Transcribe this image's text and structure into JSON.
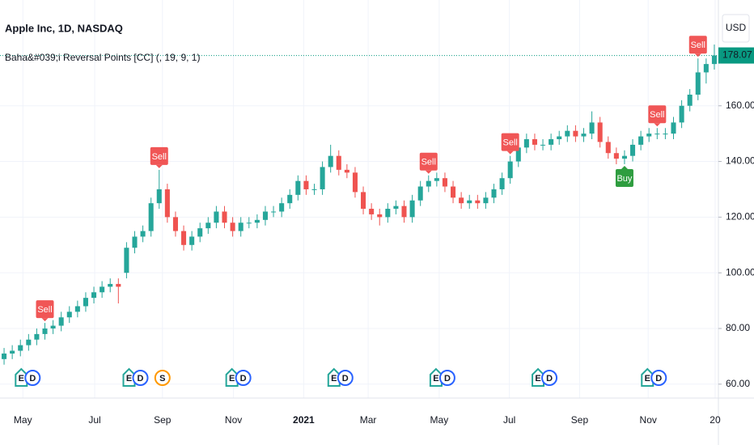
{
  "chart_data": {
    "type": "candlestick",
    "title": "Apple Inc, 1D, NASDAQ",
    "subtitle": "Baha&#039;i Reversal Points [CC] (, 19, 9, 1)",
    "currency": "USD",
    "up_color": "#26a69a",
    "down_color": "#ef5350",
    "grid": true,
    "open": [
      69,
      71,
      72,
      74,
      76,
      78,
      80,
      81,
      84,
      86,
      88,
      91,
      93,
      95,
      96,
      100,
      109,
      113,
      115,
      125,
      130,
      120,
      115,
      110,
      113,
      116,
      118,
      122,
      118,
      115,
      118,
      118,
      119,
      122,
      122,
      125,
      128,
      133,
      130,
      130,
      138,
      142,
      137,
      136,
      129,
      123,
      121,
      120,
      123,
      124,
      120,
      126,
      131,
      133,
      134,
      131,
      127,
      125,
      126,
      125,
      127,
      130,
      134,
      140,
      145,
      148,
      146,
      146,
      148,
      149,
      151,
      149,
      150,
      154,
      147,
      143,
      141,
      142,
      146,
      149,
      150,
      150,
      150,
      154,
      160,
      164,
      172,
      175
    ],
    "high": [
      73,
      74,
      76,
      78,
      80,
      82,
      83,
      86,
      88,
      90,
      93,
      95,
      97,
      98,
      98,
      111,
      115,
      117,
      127,
      137,
      132,
      122,
      117,
      115,
      118,
      120,
      124,
      124,
      120,
      120,
      120,
      121,
      124,
      124,
      127,
      130,
      135,
      135,
      132,
      140,
      146,
      144,
      139,
      138,
      131,
      125,
      123,
      125,
      126,
      126,
      128,
      133,
      135,
      136,
      136,
      133,
      129,
      128,
      128,
      129,
      132,
      136,
      142,
      147,
      150,
      150,
      148,
      150,
      151,
      153,
      153,
      152,
      158,
      156,
      149,
      145,
      144,
      148,
      151,
      152,
      152,
      152,
      156,
      162,
      166,
      177,
      177,
      182
    ],
    "low": [
      67,
      69,
      70,
      72,
      74,
      76,
      78,
      79,
      82,
      84,
      86,
      89,
      91,
      93,
      89,
      98,
      107,
      111,
      113,
      123,
      118,
      113,
      108,
      108,
      111,
      114,
      116,
      116,
      113,
      113,
      116,
      116,
      117,
      120,
      120,
      123,
      126,
      128,
      128,
      128,
      136,
      135,
      134,
      127,
      121,
      119,
      117,
      118,
      121,
      118,
      118,
      124,
      129,
      131,
      129,
      125,
      123,
      123,
      123,
      123,
      125,
      128,
      132,
      138,
      143,
      144,
      144,
      144,
      146,
      147,
      147,
      147,
      148,
      145,
      141,
      139,
      139,
      140,
      144,
      147,
      148,
      148,
      148,
      152,
      158,
      162,
      168,
      173
    ],
    "close": [
      71,
      72,
      74,
      76,
      78,
      80,
      81,
      84,
      86,
      88,
      91,
      93,
      95,
      96,
      95,
      109,
      113,
      115,
      125,
      130,
      120,
      115,
      110,
      113,
      116,
      118,
      122,
      118,
      115,
      118,
      118,
      119,
      122,
      122,
      125,
      128,
      133,
      130,
      130,
      138,
      142,
      137,
      136,
      129,
      123,
      121,
      120,
      123,
      124,
      120,
      126,
      131,
      133,
      134,
      131,
      127,
      125,
      126,
      125,
      127,
      130,
      134,
      140,
      145,
      148,
      146,
      146,
      148,
      149,
      151,
      149,
      150,
      154,
      147,
      143,
      141,
      142,
      146,
      149,
      150,
      150,
      150,
      154,
      160,
      164,
      172,
      175,
      178.07
    ],
    "last_price": 178.07,
    "last_price_color": "#089981",
    "xlim": [
      -0.5,
      87.5
    ],
    "xticks": [
      {
        "value": 2.3,
        "label": "May"
      },
      {
        "value": 11.1,
        "label": "Jul"
      },
      {
        "value": 19.4,
        "label": "Sep"
      },
      {
        "value": 28.1,
        "label": "Nov"
      },
      {
        "value": 36.7,
        "label": "2021"
      },
      {
        "value": 44.6,
        "label": "Mar"
      },
      {
        "value": 53.3,
        "label": "May"
      },
      {
        "value": 61.9,
        "label": "Jul"
      },
      {
        "value": 70.5,
        "label": "Sep"
      },
      {
        "value": 78.9,
        "label": "Nov"
      },
      {
        "value": 87.1,
        "label": "20"
      }
    ],
    "ylim": [
      55,
      198
    ],
    "yticks": [
      {
        "value": 60,
        "label": "60.00"
      },
      {
        "value": 80,
        "label": "80.00"
      },
      {
        "value": 100,
        "label": "100.00"
      },
      {
        "value": 120,
        "label": "120.00"
      },
      {
        "value": 140,
        "label": "140.00"
      },
      {
        "value": 160,
        "label": "160.00"
      }
    ],
    "signals": [
      {
        "label": "Sell",
        "index": 5,
        "color": "#f05656"
      },
      {
        "label": "Sell",
        "index": 19,
        "color": "#f05656"
      },
      {
        "label": "Sell",
        "index": 52,
        "color": "#f05656"
      },
      {
        "label": "Sell",
        "index": 62,
        "color": "#f05656"
      },
      {
        "label": "Buy",
        "index": 76,
        "color": "#2e9d3f"
      },
      {
        "label": "Sell",
        "index": 80,
        "color": "#f05656"
      },
      {
        "label": "Sell",
        "index": 85,
        "color": "#f05656"
      }
    ],
    "events": [
      {
        "labels": [
          "E",
          "D"
        ],
        "index": 2.8
      },
      {
        "labels": [
          "E",
          "D"
        ],
        "index": 16
      },
      {
        "labels": [
          "S"
        ],
        "index": 19.4
      },
      {
        "labels": [
          "E",
          "D"
        ],
        "index": 28.6
      },
      {
        "labels": [
          "E",
          "D"
        ],
        "index": 41.1
      },
      {
        "labels": [
          "E",
          "D"
        ],
        "index": 53.6
      },
      {
        "labels": [
          "E",
          "D"
        ],
        "index": 66.1
      },
      {
        "labels": [
          "E",
          "D"
        ],
        "index": 79.5
      }
    ]
  }
}
